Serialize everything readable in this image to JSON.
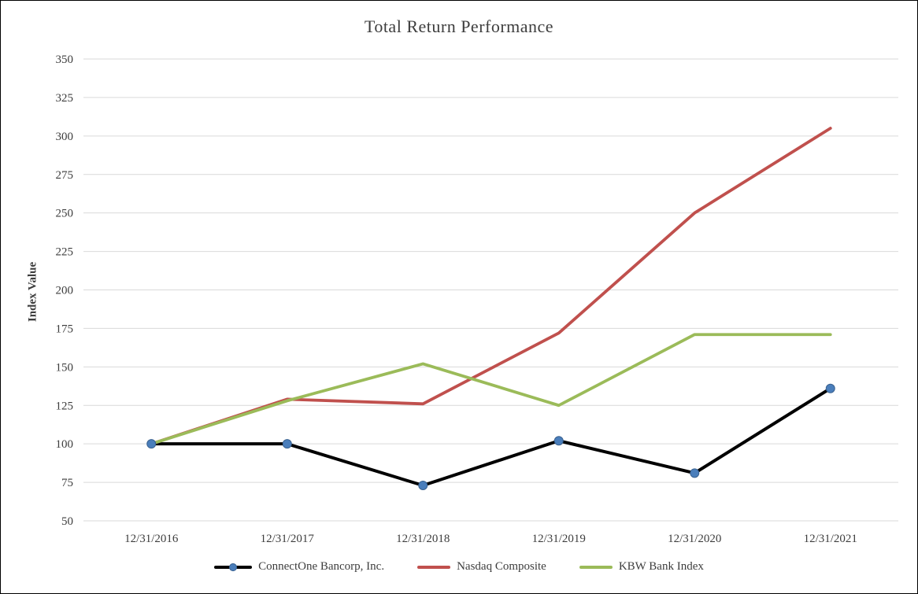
{
  "chart_data": {
    "type": "line",
    "title": "Total Return Performance",
    "ylabel": "Index Value",
    "xlabel": "",
    "ylim": [
      50,
      350
    ],
    "yticks": [
      50,
      75,
      100,
      125,
      150,
      175,
      200,
      225,
      250,
      275,
      300,
      325,
      350
    ],
    "categories": [
      "12/31/2016",
      "12/31/2017",
      "12/31/2018",
      "12/31/2019",
      "12/31/2020",
      "12/31/2021"
    ],
    "grid": true,
    "grid_color": "#d9d9d9",
    "text_color": "#3d3d3d",
    "legend_position": "bottom",
    "series": [
      {
        "name": "ConnectOne Bancorp, Inc.",
        "color": "#000000",
        "line_width": 4,
        "marker": {
          "shape": "circle",
          "color": "#4A7EBB",
          "edge_color": "#39618F",
          "radius": 5.5
        },
        "values": [
          100,
          100,
          73,
          102,
          81,
          136
        ]
      },
      {
        "name": "Nasdaq Composite",
        "color": "#C0504D",
        "line_width": 3.8,
        "values": [
          100,
          129,
          126,
          172,
          250,
          305
        ]
      },
      {
        "name": "KBW Bank Index",
        "color": "#9BBB59",
        "line_width": 3.8,
        "values": [
          100,
          128,
          152,
          125,
          171,
          171
        ]
      }
    ]
  }
}
